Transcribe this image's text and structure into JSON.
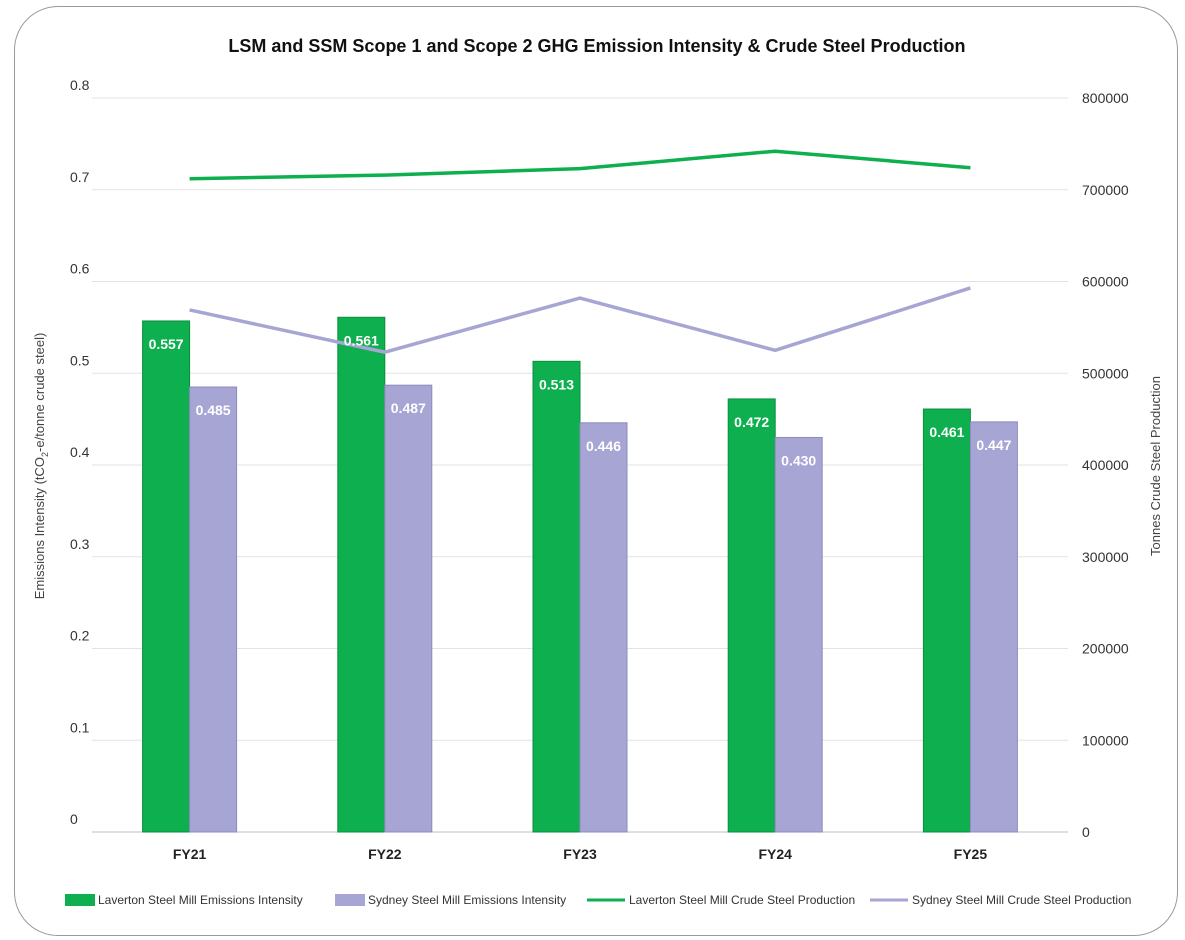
{
  "chart_data": {
    "type": "bar",
    "title": "LSM and SSM Scope 1 and Scope 2 GHG Emission Intensity & Crude Steel Production",
    "categories": [
      "FY21",
      "FY22",
      "FY23",
      "FY24",
      "FY25"
    ],
    "y_left": {
      "label_prefix": "Emissions Intensity (tCO",
      "label_sub": "2",
      "label_suffix": "-e/tonne crude steel)",
      "ylim": [
        0,
        0.8
      ],
      "ticks": [
        "0",
        "0.1",
        "0.2",
        "0.3",
        "0.4",
        "0.5",
        "0.6",
        "0.7",
        "0.8"
      ]
    },
    "y_right": {
      "label": "Tonnes Crude Steel Production",
      "ylim": [
        0,
        800000
      ],
      "ticks": [
        "0",
        "100000",
        "200000",
        "300000",
        "400000",
        "500000",
        "600000",
        "700000",
        "800000"
      ]
    },
    "bar_series": [
      {
        "name": "Laverton Steel Mill Emissions Intensity",
        "color": "#0daf4e",
        "values": [
          0.557,
          0.561,
          0.513,
          0.472,
          0.461
        ],
        "labels": [
          "0.557",
          "0.561",
          "0.513",
          "0.472",
          "0.461"
        ]
      },
      {
        "name": "Sydney Steel Mill Emissions Intensity",
        "color": "#a7a5d4",
        "values": [
          0.485,
          0.487,
          0.446,
          0.43,
          0.447
        ],
        "labels": [
          "0.485",
          "0.487",
          "0.446",
          "0.430",
          "0.447"
        ]
      }
    ],
    "line_series": [
      {
        "name": "Laverton Steel Mill Crude Steel Production",
        "color": "#0daf4e",
        "values": [
          712000,
          716000,
          723000,
          742000,
          724000
        ]
      },
      {
        "name": "Sydney Steel Mill Crude Steel Production",
        "color": "#a7a5d4",
        "values": [
          569000,
          523000,
          582000,
          525000,
          593000
        ]
      }
    ],
    "grid": true,
    "legend_position": "bottom"
  }
}
